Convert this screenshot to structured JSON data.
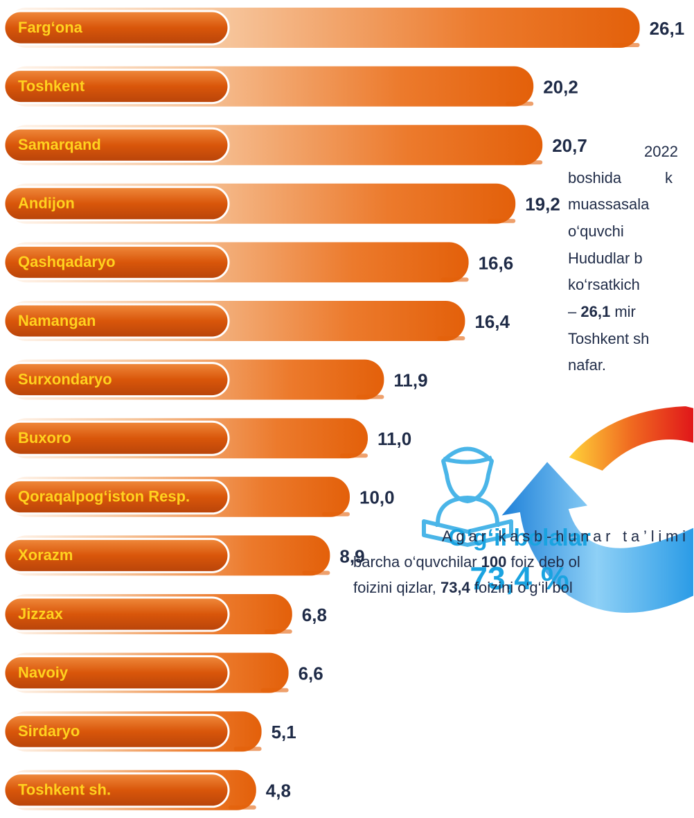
{
  "chart_data": {
    "type": "bar",
    "categories": [
      "Farg‘ona",
      "Toshkent",
      "Samarqand",
      "Andijon",
      "Qashqadaryo",
      "Namangan",
      "Surxondaryo",
      "Buxoro",
      "Qoraqalpog‘iston Resp.",
      "Xorazm",
      "Jizzax",
      "Navoiy",
      "Sirdaryo",
      "Toshkent sh."
    ],
    "values": [
      26.1,
      20.2,
      20.7,
      19.2,
      16.6,
      16.4,
      11.9,
      11.0,
      10.0,
      8.9,
      6.8,
      6.6,
      5.1,
      4.8
    ],
    "value_labels": [
      "26,1",
      "20,2",
      "20,7",
      "19,2",
      "16,6",
      "16,4",
      "11,9",
      "11,0",
      "10,0",
      "8,9",
      "6,8",
      "6,6",
      "5,1",
      "4,8"
    ],
    "color": "#e3600a"
  },
  "side_text": {
    "lines": [
      "2022",
      "boshida",
      "k",
      "muassasala",
      "o‘quvchi",
      "Hududlar b",
      "ko‘rsatkich",
      "–",
      "26,1",
      "mir",
      "Toshkent sh",
      "nafar."
    ]
  },
  "highlight": {
    "label": "O‘g‘il bolalar",
    "value": "73,4 %"
  },
  "bottom_text": {
    "line1": "Agar kasb-hunar ta’limi",
    "line2_a": "barcha o‘quvchilar",
    "line2_b": "100",
    "line2_c": "foiz deb ol",
    "line3_a": "foizini qizlar,",
    "line3_b": "73,4",
    "line3_c": "foizini o‘g‘il bol"
  }
}
